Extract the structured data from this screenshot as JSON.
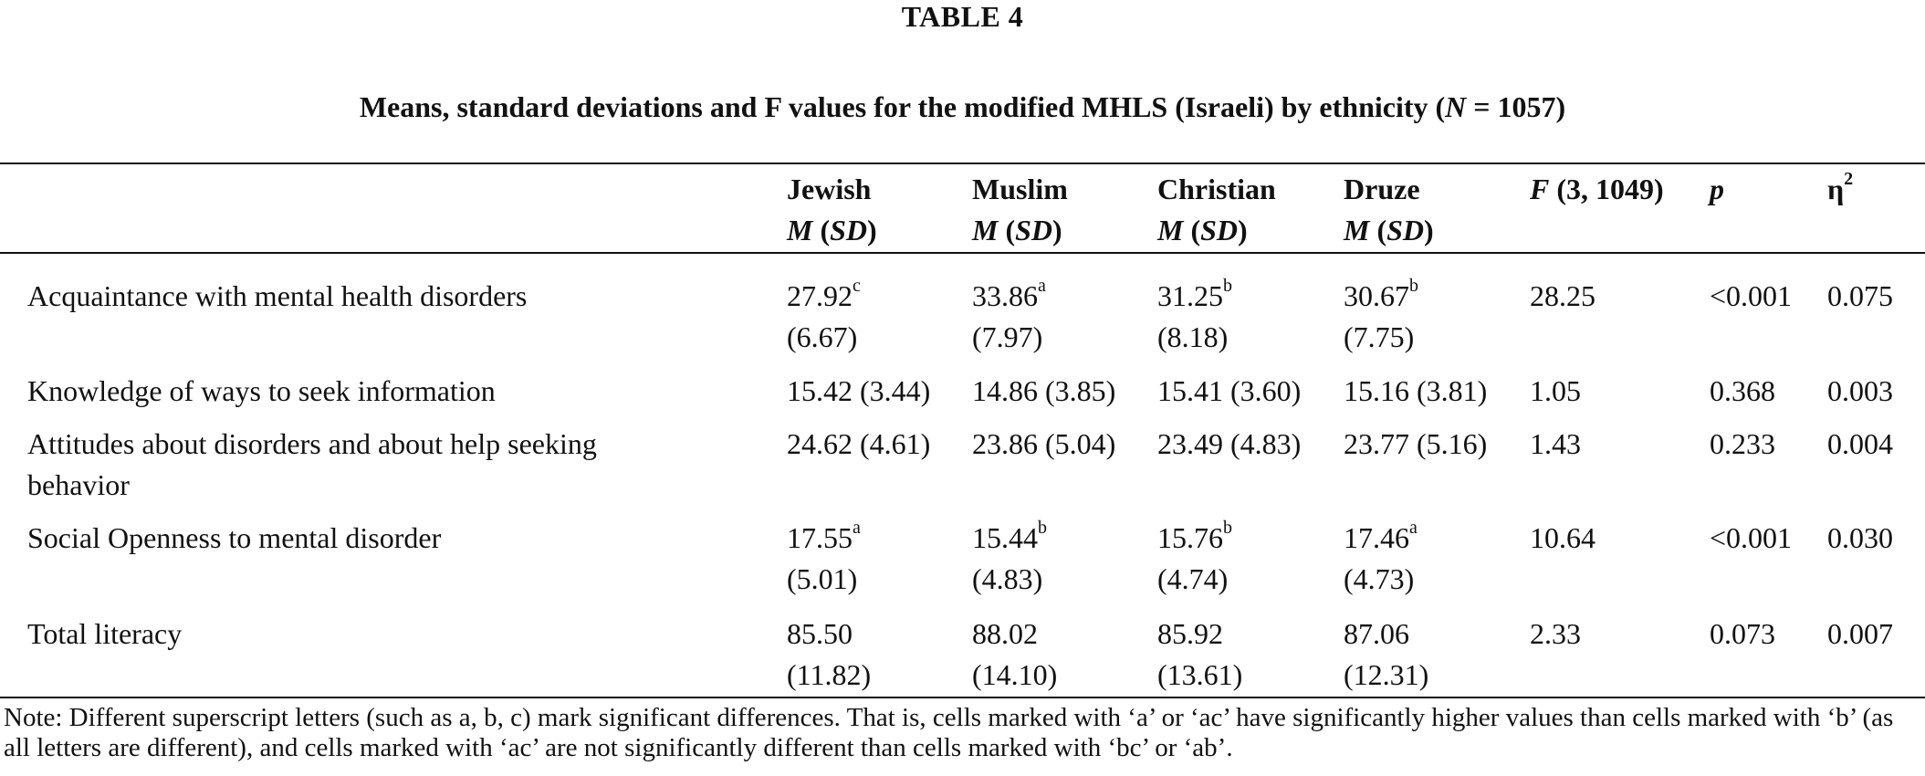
{
  "table": {
    "label": "TABLE 4",
    "caption_pre": "Means, standard deviations and F values for the modified MHLS (Israeli) by ethnicity (",
    "caption_n": "N",
    "caption_post": " = 1057)",
    "columns": [
      {
        "name": "Jewish",
        "stat_m": "M",
        "stat_sd": "SD"
      },
      {
        "name": "Muslim",
        "stat_m": "M",
        "stat_sd": "SD"
      },
      {
        "name": "Christian",
        "stat_m": "M",
        "stat_sd": "SD"
      },
      {
        "name": "Druze",
        "stat_m": "M",
        "stat_sd": "SD"
      }
    ],
    "f_col": {
      "letter": "F",
      "rest": " (3, 1049)"
    },
    "p_col": "p",
    "eta_col": {
      "symbol": "η",
      "sup": "2"
    },
    "rows": [
      {
        "label": "Acquaintance with mental health disorders",
        "cells": [
          {
            "mean": "27.92",
            "sup": "c",
            "sd": "(6.67)"
          },
          {
            "mean": "33.86",
            "sup": "a",
            "sd": "(7.97)"
          },
          {
            "mean": "31.25",
            "sup": "b",
            "sd": "(8.18)"
          },
          {
            "mean": "30.67",
            "sup": "b",
            "sd": "(7.75)"
          }
        ],
        "f": "28.25",
        "p": "<0.001",
        "eta": "0.075"
      },
      {
        "label": "Knowledge of ways to seek information",
        "cells": [
          {
            "mean": "15.42 (3.44)"
          },
          {
            "mean": "14.86 (3.85)"
          },
          {
            "mean": "15.41 (3.60)"
          },
          {
            "mean": "15.16 (3.81)"
          }
        ],
        "f": "1.05",
        "p": "0.368",
        "eta": "0.003"
      },
      {
        "label_line1": "Attitudes about disorders and about help seeking",
        "label_line2": "behavior",
        "cells": [
          {
            "mean": "24.62 (4.61)"
          },
          {
            "mean": "23.86 (5.04)"
          },
          {
            "mean": "23.49 (4.83)"
          },
          {
            "mean": "23.77 (5.16)"
          }
        ],
        "f": "1.43",
        "p": "0.233",
        "eta": "0.004"
      },
      {
        "label": "Social Openness to mental disorder",
        "cells": [
          {
            "mean": "17.55",
            "sup": "a",
            "sd": "(5.01)"
          },
          {
            "mean": "15.44",
            "sup": "b",
            "sd": "(4.83)"
          },
          {
            "mean": "15.76",
            "sup": "b",
            "sd": "(4.74)"
          },
          {
            "mean": "17.46",
            "sup": "a",
            "sd": "(4.73)"
          }
        ],
        "f": "10.64",
        "p": "<0.001",
        "eta": "0.030"
      },
      {
        "label": "Total literacy",
        "cells": [
          {
            "mean": "85.50",
            "sd": "(11.82)"
          },
          {
            "mean": "88.02",
            "sd": "(14.10)"
          },
          {
            "mean": "85.92",
            "sd": "(13.61)"
          },
          {
            "mean": "87.06",
            "sd": "(12.31)"
          }
        ],
        "f": "2.33",
        "p": "0.073",
        "eta": "0.007"
      }
    ],
    "note": "Note: Different superscript letters (such as a, b, c) mark significant differences. That is, cells marked with ‘a’ or ‘ac’ have significantly higher values than cells marked with ‘b’ (as all letters are different), and cells marked with ‘ac’ are not significantly different than cells marked with ‘bc’ or ‘ab’."
  }
}
